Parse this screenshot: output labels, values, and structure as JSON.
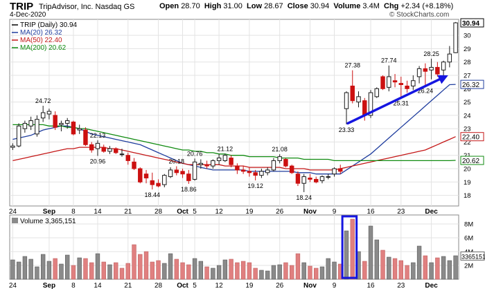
{
  "header": {
    "symbol": "TRIP",
    "company": "TripAdvisor, Inc.  Nasdaq GS",
    "date": "4-Dec-2020",
    "open_label": "Open",
    "open": "28.70",
    "high_label": "High",
    "high": "31.00",
    "low_label": "Low",
    "low": "28.67",
    "close_label": "Close",
    "close": "30.94",
    "volume_label": "Volume",
    "volume": "3.4M",
    "chg_label": "Chg",
    "chg": "+2.34 (+8.18%)",
    "source": "© StockCharts.com"
  },
  "colors": {
    "up": "#1a1a1a",
    "down": "#cc1111",
    "ma20": "#1f3d9e",
    "ma50": "#c41616",
    "ma200": "#0f8a0f",
    "annotation": "#1515e0",
    "vol_up": "#8a8a8a",
    "vol_down": "#e08080"
  },
  "chart_data": [
    {
      "type": "candlestick",
      "legend": [
        {
          "label": "TRIP (Daily) 30.94",
          "color": "#000000"
        },
        {
          "label": "MA(20) 26.32",
          "color": "#1f3d9e"
        },
        {
          "label": "MA(50) 22.40",
          "color": "#c41616"
        },
        {
          "label": "MA(200) 20.62",
          "color": "#0f8a0f"
        }
      ],
      "ylim": [
        17.2,
        31.2
      ],
      "y_ticks": [
        18,
        19,
        20,
        21,
        22,
        23,
        24,
        25,
        26,
        27,
        28,
        29,
        30
      ],
      "x_ticks": [
        "24",
        "Sep",
        "8",
        "14",
        "21",
        "28",
        "Oct",
        "5",
        "12",
        "19",
        "26",
        "Nov",
        "9",
        "16",
        "23",
        "Dec"
      ],
      "x_tick_index": [
        0,
        6,
        10,
        14,
        19,
        24,
        28,
        30,
        34,
        39,
        44,
        49,
        53,
        59,
        64,
        69
      ],
      "candles": [
        {
          "o": 21.6,
          "h": 21.9,
          "l": 21.4,
          "c": 21.7
        },
        {
          "o": 21.7,
          "h": 23.4,
          "l": 21.6,
          "c": 23.2
        },
        {
          "o": 23.0,
          "h": 23.6,
          "l": 22.7,
          "c": 23.4
        },
        {
          "o": 23.2,
          "h": 23.9,
          "l": 22.9,
          "c": 23.6
        },
        {
          "o": 22.6,
          "h": 24.0,
          "l": 22.4,
          "c": 23.7
        },
        {
          "o": 23.8,
          "h": 24.72,
          "l": 23.5,
          "c": 24.2
        },
        {
          "o": 24.1,
          "h": 24.5,
          "l": 23.7,
          "c": 24.3
        },
        {
          "o": 24.0,
          "h": 24.3,
          "l": 22.9,
          "c": 23.1
        },
        {
          "o": 23.3,
          "h": 23.6,
          "l": 22.8,
          "c": 23.4
        },
        {
          "o": 23.4,
          "h": 23.8,
          "l": 23.0,
          "c": 23.6
        },
        {
          "o": 23.5,
          "h": 23.6,
          "l": 22.5,
          "c": 22.6
        },
        {
          "o": 22.9,
          "h": 23.3,
          "l": 22.6,
          "c": 23.0
        },
        {
          "o": 22.9,
          "h": 23.1,
          "l": 21.7,
          "c": 21.8
        },
        {
          "o": 21.8,
          "h": 22.0,
          "l": 21.2,
          "c": 21.4
        },
        {
          "o": 21.5,
          "h": 22.13,
          "l": 20.96,
          "c": 21.9
        },
        {
          "o": 21.6,
          "h": 21.8,
          "l": 21.2,
          "c": 21.3
        },
        {
          "o": 21.3,
          "h": 21.7,
          "l": 21.1,
          "c": 21.5
        },
        {
          "o": 21.5,
          "h": 21.6,
          "l": 21.1,
          "c": 21.2
        },
        {
          "o": 21.1,
          "h": 21.5,
          "l": 20.9,
          "c": 21.1
        },
        {
          "o": 21.0,
          "h": 21.2,
          "l": 20.3,
          "c": 20.6
        },
        {
          "o": 20.5,
          "h": 20.8,
          "l": 19.9,
          "c": 20.0
        },
        {
          "o": 20.0,
          "h": 20.1,
          "l": 18.9,
          "c": 19.0
        },
        {
          "o": 19.6,
          "h": 19.9,
          "l": 18.9,
          "c": 19.3
        },
        {
          "o": 19.1,
          "h": 19.7,
          "l": 18.44,
          "c": 18.8
        },
        {
          "o": 18.9,
          "h": 19.2,
          "l": 18.6,
          "c": 18.7
        },
        {
          "o": 18.8,
          "h": 19.6,
          "l": 18.6,
          "c": 19.5
        },
        {
          "o": 19.4,
          "h": 20.1,
          "l": 19.3,
          "c": 19.9
        },
        {
          "o": 19.9,
          "h": 20.18,
          "l": 19.5,
          "c": 19.7
        },
        {
          "o": 19.8,
          "h": 20.0,
          "l": 19.3,
          "c": 19.6
        },
        {
          "o": 19.6,
          "h": 19.9,
          "l": 18.86,
          "c": 19.1
        },
        {
          "o": 19.2,
          "h": 20.76,
          "l": 19.1,
          "c": 20.5
        },
        {
          "o": 20.3,
          "h": 20.7,
          "l": 20.0,
          "c": 20.4
        },
        {
          "o": 20.3,
          "h": 20.6,
          "l": 20.0,
          "c": 20.2
        },
        {
          "o": 20.2,
          "h": 20.7,
          "l": 20.0,
          "c": 20.6
        },
        {
          "o": 20.6,
          "h": 21.1,
          "l": 20.3,
          "c": 20.8
        },
        {
          "o": 20.6,
          "h": 21.12,
          "l": 20.5,
          "c": 21.0
        },
        {
          "o": 20.8,
          "h": 21.0,
          "l": 20.1,
          "c": 20.3
        },
        {
          "o": 20.2,
          "h": 20.4,
          "l": 19.6,
          "c": 19.9
        },
        {
          "o": 19.9,
          "h": 20.2,
          "l": 19.6,
          "c": 19.8
        },
        {
          "o": 19.8,
          "h": 20.1,
          "l": 19.4,
          "c": 19.7
        },
        {
          "o": 19.7,
          "h": 19.9,
          "l": 19.12,
          "c": 19.5
        },
        {
          "o": 19.5,
          "h": 20.0,
          "l": 19.3,
          "c": 19.8
        },
        {
          "o": 19.7,
          "h": 20.1,
          "l": 19.5,
          "c": 19.9
        },
        {
          "o": 19.9,
          "h": 20.8,
          "l": 19.8,
          "c": 20.6
        },
        {
          "o": 20.6,
          "h": 21.08,
          "l": 20.4,
          "c": 20.9
        },
        {
          "o": 20.7,
          "h": 20.8,
          "l": 20.1,
          "c": 20.2
        },
        {
          "o": 20.2,
          "h": 20.3,
          "l": 19.6,
          "c": 19.7
        },
        {
          "o": 19.6,
          "h": 19.8,
          "l": 18.7,
          "c": 18.9
        },
        {
          "o": 18.9,
          "h": 19.6,
          "l": 18.24,
          "c": 19.4
        },
        {
          "o": 19.3,
          "h": 19.6,
          "l": 19.0,
          "c": 19.2
        },
        {
          "o": 19.2,
          "h": 19.4,
          "l": 18.9,
          "c": 19.0
        },
        {
          "o": 19.1,
          "h": 19.5,
          "l": 18.9,
          "c": 19.4
        },
        {
          "o": 19.4,
          "h": 19.6,
          "l": 19.2,
          "c": 19.4
        },
        {
          "o": 19.6,
          "h": 20.1,
          "l": 19.4,
          "c": 20.0
        },
        {
          "o": 20.0,
          "h": 20.3,
          "l": 19.6,
          "c": 19.8
        },
        {
          "o": 24.5,
          "h": 25.8,
          "l": 23.33,
          "c": 25.7
        },
        {
          "o": 26.2,
          "h": 27.38,
          "l": 24.9,
          "c": 25.1
        },
        {
          "o": 25.0,
          "h": 25.8,
          "l": 24.6,
          "c": 25.4
        },
        {
          "o": 25.1,
          "h": 25.3,
          "l": 23.6,
          "c": 24.0
        },
        {
          "o": 24.0,
          "h": 25.9,
          "l": 23.8,
          "c": 25.7
        },
        {
          "o": 25.4,
          "h": 26.1,
          "l": 25.3,
          "c": 26.0
        },
        {
          "o": 26.9,
          "h": 27.0,
          "l": 25.9,
          "c": 26.0
        },
        {
          "o": 26.1,
          "h": 27.74,
          "l": 25.8,
          "c": 26.9
        },
        {
          "o": 26.6,
          "h": 27.1,
          "l": 26.1,
          "c": 26.5
        },
        {
          "o": 26.4,
          "h": 26.9,
          "l": 25.31,
          "c": 26.3
        },
        {
          "o": 26.2,
          "h": 26.6,
          "l": 25.7,
          "c": 26.0
        },
        {
          "o": 26.2,
          "h": 27.0,
          "l": 25.9,
          "c": 26.6
        },
        {
          "o": 26.9,
          "h": 27.7,
          "l": 26.4,
          "c": 27.5
        },
        {
          "o": 27.5,
          "h": 27.9,
          "l": 26.24,
          "c": 27.3
        },
        {
          "o": 27.4,
          "h": 28.25,
          "l": 26.7,
          "c": 27.6
        },
        {
          "o": 27.6,
          "h": 28.0,
          "l": 26.9,
          "c": 27.1
        },
        {
          "o": 27.4,
          "h": 28.1,
          "l": 26.8,
          "c": 28.0
        },
        {
          "o": 28.0,
          "h": 29.2,
          "l": 27.6,
          "c": 28.6
        },
        {
          "o": 28.7,
          "h": 31.0,
          "l": 28.67,
          "c": 30.94
        }
      ],
      "labels": [
        {
          "i": 5,
          "text": "24.72",
          "pos": "above"
        },
        {
          "i": 14,
          "text": "22.13",
          "pos": "above"
        },
        {
          "i": 14,
          "text": "20.96",
          "pos": "below"
        },
        {
          "i": 23,
          "text": "18.44",
          "pos": "below"
        },
        {
          "i": 27,
          "text": "20.18",
          "pos": "above"
        },
        {
          "i": 29,
          "text": "18.86",
          "pos": "below"
        },
        {
          "i": 30,
          "text": "20.76",
          "pos": "above"
        },
        {
          "i": 35,
          "text": "21.12",
          "pos": "above"
        },
        {
          "i": 40,
          "text": "19.12",
          "pos": "below"
        },
        {
          "i": 44,
          "text": "21.08",
          "pos": "above"
        },
        {
          "i": 48,
          "text": "18.24",
          "pos": "below"
        },
        {
          "i": 55,
          "text": "23.33",
          "pos": "below"
        },
        {
          "i": 56,
          "text": "27.38",
          "pos": "above"
        },
        {
          "i": 62,
          "text": "27.74",
          "pos": "above"
        },
        {
          "i": 64,
          "text": "25.31",
          "pos": "below"
        },
        {
          "i": 68,
          "text": "26.24",
          "pos": "below"
        },
        {
          "i": 69,
          "text": "28.25",
          "pos": "above"
        }
      ],
      "moving_averages": [
        {
          "name": "MA(20)",
          "color": "#1f3d9e",
          "values": [
            22.2,
            22.3,
            22.4,
            22.5,
            22.7,
            22.9,
            23.0,
            23.1,
            23.2,
            23.2,
            23.1,
            23.0,
            22.8,
            22.6,
            22.5,
            22.4,
            22.3,
            22.2,
            22.1,
            22.0,
            21.9,
            21.8,
            21.6,
            21.4,
            21.2,
            21.0,
            20.8,
            20.6,
            20.4,
            20.3,
            20.2,
            20.1,
            20.0,
            19.9,
            19.9,
            19.9,
            19.9,
            19.9,
            19.9,
            19.8,
            19.8,
            19.8,
            19.8,
            19.8,
            19.8,
            19.8,
            19.8,
            19.7,
            19.7,
            19.7,
            19.6,
            19.6,
            19.6,
            19.6,
            19.6,
            19.9,
            20.2,
            20.5,
            20.8,
            21.1,
            21.5,
            21.9,
            22.3,
            22.7,
            23.1,
            23.5,
            23.9,
            24.3,
            24.7,
            25.1,
            25.5,
            25.9,
            26.3,
            26.32
          ]
        },
        {
          "name": "MA(50)",
          "color": "#c41616",
          "values": [
            20.6,
            20.7,
            20.8,
            20.9,
            21.0,
            21.1,
            21.2,
            21.3,
            21.4,
            21.5,
            21.5,
            21.6,
            21.6,
            21.6,
            21.6,
            21.6,
            21.5,
            21.5,
            21.4,
            21.3,
            21.2,
            21.1,
            21.0,
            20.9,
            20.8,
            20.7,
            20.6,
            20.5,
            20.4,
            20.3,
            20.3,
            20.3,
            20.3,
            20.3,
            20.3,
            20.2,
            20.2,
            20.2,
            20.2,
            20.1,
            20.1,
            20.1,
            20.1,
            20.1,
            20.1,
            20.0,
            20.0,
            20.0,
            20.0,
            19.9,
            19.9,
            19.9,
            19.9,
            19.9,
            20.0,
            20.1,
            20.2,
            20.3,
            20.4,
            20.5,
            20.6,
            20.7,
            20.8,
            20.9,
            21.0,
            21.1,
            21.2,
            21.3,
            21.4,
            21.6,
            21.8,
            22.0,
            22.2,
            22.4
          ]
        },
        {
          "name": "MA(200)",
          "color": "#0f8a0f",
          "values": [
            23.3,
            23.3,
            23.3,
            23.3,
            23.3,
            23.3,
            23.2,
            23.2,
            23.2,
            23.1,
            23.1,
            23.0,
            23.0,
            22.9,
            22.8,
            22.7,
            22.6,
            22.5,
            22.4,
            22.3,
            22.2,
            22.1,
            22.0,
            21.9,
            21.8,
            21.7,
            21.6,
            21.5,
            21.4,
            21.4,
            21.3,
            21.3,
            21.2,
            21.2,
            21.1,
            21.1,
            21.0,
            21.0,
            21.0,
            20.9,
            20.9,
            20.9,
            20.9,
            20.9,
            20.8,
            20.8,
            20.8,
            20.8,
            20.7,
            20.7,
            20.7,
            20.7,
            20.7,
            20.6,
            20.6,
            20.6,
            20.6,
            20.6,
            20.6,
            20.6,
            20.6,
            20.6,
            20.6,
            20.6,
            20.6,
            20.6,
            20.6,
            20.6,
            20.6,
            20.6,
            20.6,
            20.6,
            20.6,
            20.62
          ]
        }
      ],
      "right_badges": [
        {
          "text": "30.94",
          "value": 30.94,
          "style": "bold"
        },
        {
          "text": "26.32",
          "value": 26.32,
          "style": "ma20"
        },
        {
          "text": "22.40",
          "value": 22.4,
          "style": "ma50"
        },
        {
          "text": "20.62",
          "value": 20.62,
          "style": "ma200"
        }
      ],
      "annotation": "upward trend arrow from the 23.33 low toward the latest highs"
    },
    {
      "type": "bar",
      "legend": [
        {
          "label": "Volume 3,365,151",
          "color": "#808080"
        }
      ],
      "ylim": [
        0,
        9.3
      ],
      "y_ticks": [
        2,
        4,
        6,
        8
      ],
      "y_tick_labels": [
        "2M",
        "4M",
        "6M",
        "8M"
      ],
      "right_badge": "3365151",
      "values": [
        2.8,
        2.5,
        3.3,
        2.9,
        1.8,
        3.6,
        2.6,
        3.0,
        2.2,
        3.5,
        2.0,
        3.1,
        3.0,
        2.4,
        3.7,
        2.5,
        2.1,
        2.4,
        1.6,
        2.3,
        5.0,
        3.6,
        4.0,
        2.5,
        2.7,
        2.3,
        3.7,
        2.9,
        2.4,
        2.1,
        3.0,
        2.6,
        1.8,
        1.6,
        2.0,
        2.8,
        2.9,
        2.4,
        2.6,
        2.4,
        1.6,
        1.3,
        1.2,
        2.0,
        2.1,
        2.4,
        2.0,
        3.7,
        2.4,
        1.9,
        1.6,
        1.8,
        3.0,
        2.5,
        2.2,
        7.0,
        8.7,
        4.0,
        2.6,
        7.7,
        5.7,
        4.2,
        3.2,
        3.0,
        2.7,
        2.0,
        2.4,
        4.8,
        3.4,
        2.4,
        3.1,
        3.3,
        2.7,
        3.4
      ],
      "up": [
        true,
        true,
        true,
        true,
        true,
        true,
        true,
        false,
        true,
        true,
        false,
        true,
        false,
        false,
        true,
        false,
        true,
        false,
        false,
        false,
        false,
        false,
        false,
        false,
        false,
        true,
        true,
        false,
        false,
        false,
        true,
        true,
        false,
        true,
        true,
        true,
        false,
        false,
        false,
        false,
        false,
        true,
        true,
        true,
        true,
        false,
        false,
        false,
        true,
        false,
        false,
        true,
        true,
        true,
        false,
        true,
        false,
        true,
        false,
        true,
        true,
        false,
        true,
        false,
        false,
        false,
        true,
        true,
        false,
        true,
        false,
        true,
        true,
        true
      ],
      "x_ticks": [
        "24",
        "Sep",
        "8",
        "14",
        "21",
        "28",
        "Oct",
        "5",
        "12",
        "19",
        "26",
        "Nov",
        "9",
        "16",
        "23",
        "Dec"
      ],
      "highlight": {
        "from_index": 55,
        "to_index": 56
      }
    }
  ]
}
